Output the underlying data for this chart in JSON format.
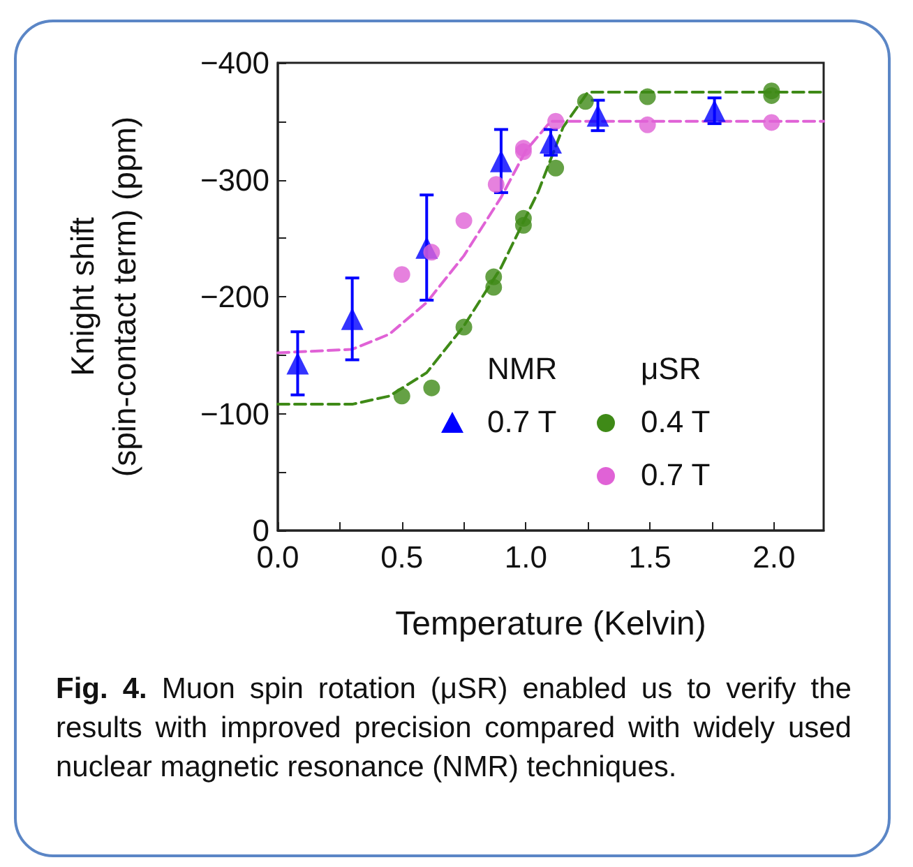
{
  "chart_data": {
    "type": "scatter",
    "xlabel": "Temperature (Kelvin)",
    "ylabel": "Knight shift\n(spin-contact term) (ppm)",
    "xlim": [
      0,
      2.2
    ],
    "ylim": [
      0,
      -400
    ],
    "xticks": [
      {
        "value": 0,
        "label": "0.0"
      },
      {
        "value": 0.25,
        "label": null
      },
      {
        "value": 0.5,
        "label": "0.5"
      },
      {
        "value": 0.75,
        "label": null
      },
      {
        "value": 1,
        "label": "1.0"
      },
      {
        "value": 1.25,
        "label": null
      },
      {
        "value": 1.5,
        "label": "1.5"
      },
      {
        "value": 1.75,
        "label": null
      },
      {
        "value": 2,
        "label": "2.0"
      }
    ],
    "yticks": [
      0,
      {
        "value": -50,
        "label": null
      },
      {
        "value": -100,
        "label": "−100"
      },
      {
        "value": -150,
        "label": null
      },
      {
        "value": -200,
        "label": "−200"
      },
      {
        "value": -250,
        "label": null
      },
      {
        "value": -300,
        "label": "−300"
      },
      {
        "value": -350,
        "label": null
      },
      {
        "value": -400,
        "label": "−400"
      }
    ],
    "grid": false,
    "legend": "bottom right",
    "legend_title": "NMR",
    "annotations": [
      "μSR",
      "Fig. 4.",
      "Muon spin rotation (μSR) enabled us to verify the results with improved precision compared with widely used nuclear magnetic resonance (NMR) techniques."
    ],
    "series": [
      {
        "type": "line",
        "color": "#3f8a17",
        "line_style": "dashed",
        "marker": "none",
        "x": [
          0,
          0.3,
          0.45,
          0.6,
          0.75,
          0.9,
          1.05,
          1.15,
          1.25,
          2.2
        ],
        "values": [
          -108,
          -108,
          -115,
          -135,
          -175,
          -225,
          -290,
          -345,
          -375,
          -375
        ]
      },
      {
        "type": "line",
        "color": "#e062d6",
        "line_style": "dashed",
        "marker": "none",
        "x": [
          0,
          0.3,
          0.45,
          0.6,
          0.75,
          0.9,
          1.0,
          1.1,
          2.2
        ],
        "values": [
          -152,
          -155,
          -168,
          -195,
          -235,
          -285,
          -325,
          -350,
          -350
        ]
      },
      {
        "name": "0.7 T",
        "color": "#0000ff",
        "marker": "triangle",
        "x": [
          0.08,
          0.3,
          0.6,
          0.9,
          1.1,
          1.29,
          1.76
        ],
        "values": [
          -143,
          -181,
          -242,
          -316,
          -332,
          -355,
          -359
        ],
        "errors": [
          27,
          35,
          45,
          27,
          11,
          13,
          11
        ]
      },
      {
        "name": "0.4 T",
        "color": "#3f8a17",
        "marker": "circle",
        "x": [
          0.5,
          0.62,
          0.75,
          0.87,
          0.87,
          0.99,
          0.99,
          1.12,
          1.24,
          1.49,
          1.99,
          1.99
        ],
        "values": [
          -115,
          -122,
          -174,
          -208,
          -217,
          -261,
          -267,
          -310,
          -367,
          -371,
          -376,
          -372
        ]
      },
      {
        "name": "0.7 T",
        "color": "#e062d6",
        "marker": "circle",
        "x": [
          0.5,
          0.62,
          0.75,
          0.88,
          0.99,
          0.99,
          1.12,
          1.49,
          1.99
        ],
        "values": [
          -219,
          -238,
          -265,
          -296,
          -327,
          -324,
          -350,
          -347,
          -349
        ]
      }
    ]
  }
}
